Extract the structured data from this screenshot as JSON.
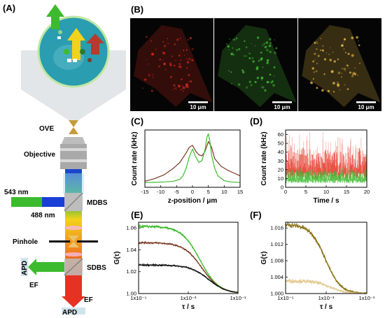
{
  "panels": {
    "a": "(A)",
    "b": "(B)",
    "c": "(C)",
    "d": "(D)",
    "e": "(E)",
    "f": "(F)"
  },
  "setup": {
    "ove": "OVE",
    "objective": "Objective",
    "laser_green": "543 nm",
    "laser_blue": "488 nm",
    "mdbs": "MDBS",
    "pinhole": "Pinhole",
    "sdbs": "SDBS",
    "apd_side": "APD",
    "ef_side": "EF",
    "ef_bottom": "EF",
    "apd_bottom": "APD",
    "colors": {
      "green": "#3dbb2e",
      "blue": "#1a3fd6",
      "yellow": "#f2d21c",
      "orange": "#ef8a1f",
      "red": "#e63222",
      "sample": "#2a9db0"
    }
  },
  "micrographs": {
    "scale_label": "10 μm",
    "channels": [
      "red",
      "green",
      "merge"
    ],
    "colors": {
      "red": "#d82a1e",
      "green": "#49c43a",
      "merge": "#e6bb45"
    }
  },
  "chart_data": [
    {
      "id": "C",
      "type": "line",
      "xlabel": "z-position / μm",
      "ylabel": "Count rate (kHz)",
      "xlim": [
        -15,
        15
      ],
      "xticks": [
        "-15",
        "-10",
        "-5",
        "0",
        "5",
        "10",
        "15"
      ],
      "yticks": [],
      "series": [
        {
          "color": "#7b3a24",
          "x": [
            -15,
            -12,
            -9,
            -6,
            -4,
            -2,
            -1,
            0,
            1,
            2,
            3,
            4,
            5,
            6,
            7,
            9,
            11,
            13,
            15
          ],
          "y": [
            3.2,
            4.5,
            6.5,
            10,
            13,
            18,
            21,
            22,
            19,
            17,
            16.5,
            19,
            24,
            21,
            15,
            11,
            9,
            7.5,
            6
          ]
        },
        {
          "color": "#3dbb2e",
          "x": [
            -15,
            -12,
            -9,
            -6,
            -4,
            -3,
            -2,
            -1,
            0,
            1,
            2,
            3,
            4,
            4.5,
            5,
            5.5,
            6,
            7,
            8,
            10,
            12,
            15
          ],
          "y": [
            2.5,
            2.6,
            2.8,
            3.2,
            4.2,
            6,
            10,
            16,
            20,
            16,
            13,
            14,
            20,
            26,
            28,
            24,
            17,
            10,
            6,
            3.5,
            2.8,
            2.5
          ]
        }
      ]
    },
    {
      "id": "D",
      "type": "area",
      "xlabel": "Time / s",
      "ylabel": "Count rate (kHz)",
      "xlim": [
        0,
        20
      ],
      "ylim": [
        0,
        70
      ],
      "xticks": [
        "0",
        "5",
        "10",
        "15",
        "20"
      ],
      "yticks": [
        "0",
        "10",
        "20",
        "30",
        "40",
        "50",
        "60"
      ],
      "series": [
        {
          "color": "#e63222",
          "mean": 32,
          "spread": 22
        },
        {
          "color": "#3dbb2e",
          "mean": 15,
          "spread": 10
        }
      ]
    },
    {
      "id": "E",
      "type": "line",
      "xlabel": "τ / s",
      "ylabel": "G(τ)",
      "xscale": "log",
      "xlim": [
        1e-05,
        0.5
      ],
      "ylim": [
        1.0,
        1.07
      ],
      "xticks": [
        "1x10⁻⁵",
        "1x10⁻³",
        "1x10⁻¹"
      ],
      "yticks": [
        "1.00",
        "1.02",
        "1.04",
        "1.06"
      ],
      "series": [
        {
          "color": "#3dbb2e",
          "g0": 1.066,
          "tau": 0.008,
          "noise": 0.0012
        },
        {
          "color": "#7b3a24",
          "g0": 1.05,
          "tau": 0.01,
          "noise": 0.001
        },
        {
          "color": "#111111",
          "g0": 1.028,
          "tau": 0.02,
          "noise": 0.001
        }
      ]
    },
    {
      "id": "F",
      "type": "line",
      "xlabel": "τ / s",
      "ylabel": "G(τ)",
      "xscale": "log",
      "xlim": [
        1e-05,
        0.5
      ],
      "ylim": [
        1.0,
        1.017
      ],
      "xticks": [
        "1x10⁻⁵",
        "1x10⁻³",
        "1x10⁻¹"
      ],
      "yticks": [
        "1.000",
        "1.004",
        "1.008",
        "1.012",
        "1.016"
      ],
      "series": [
        {
          "color": "#8a7318",
          "g0": 1.0165,
          "tau": 0.002,
          "noise": 0.0005
        },
        {
          "color": "#e3c98e",
          "g0": 1.003,
          "tau": 0.004,
          "noise": 0.0004
        }
      ]
    }
  ]
}
